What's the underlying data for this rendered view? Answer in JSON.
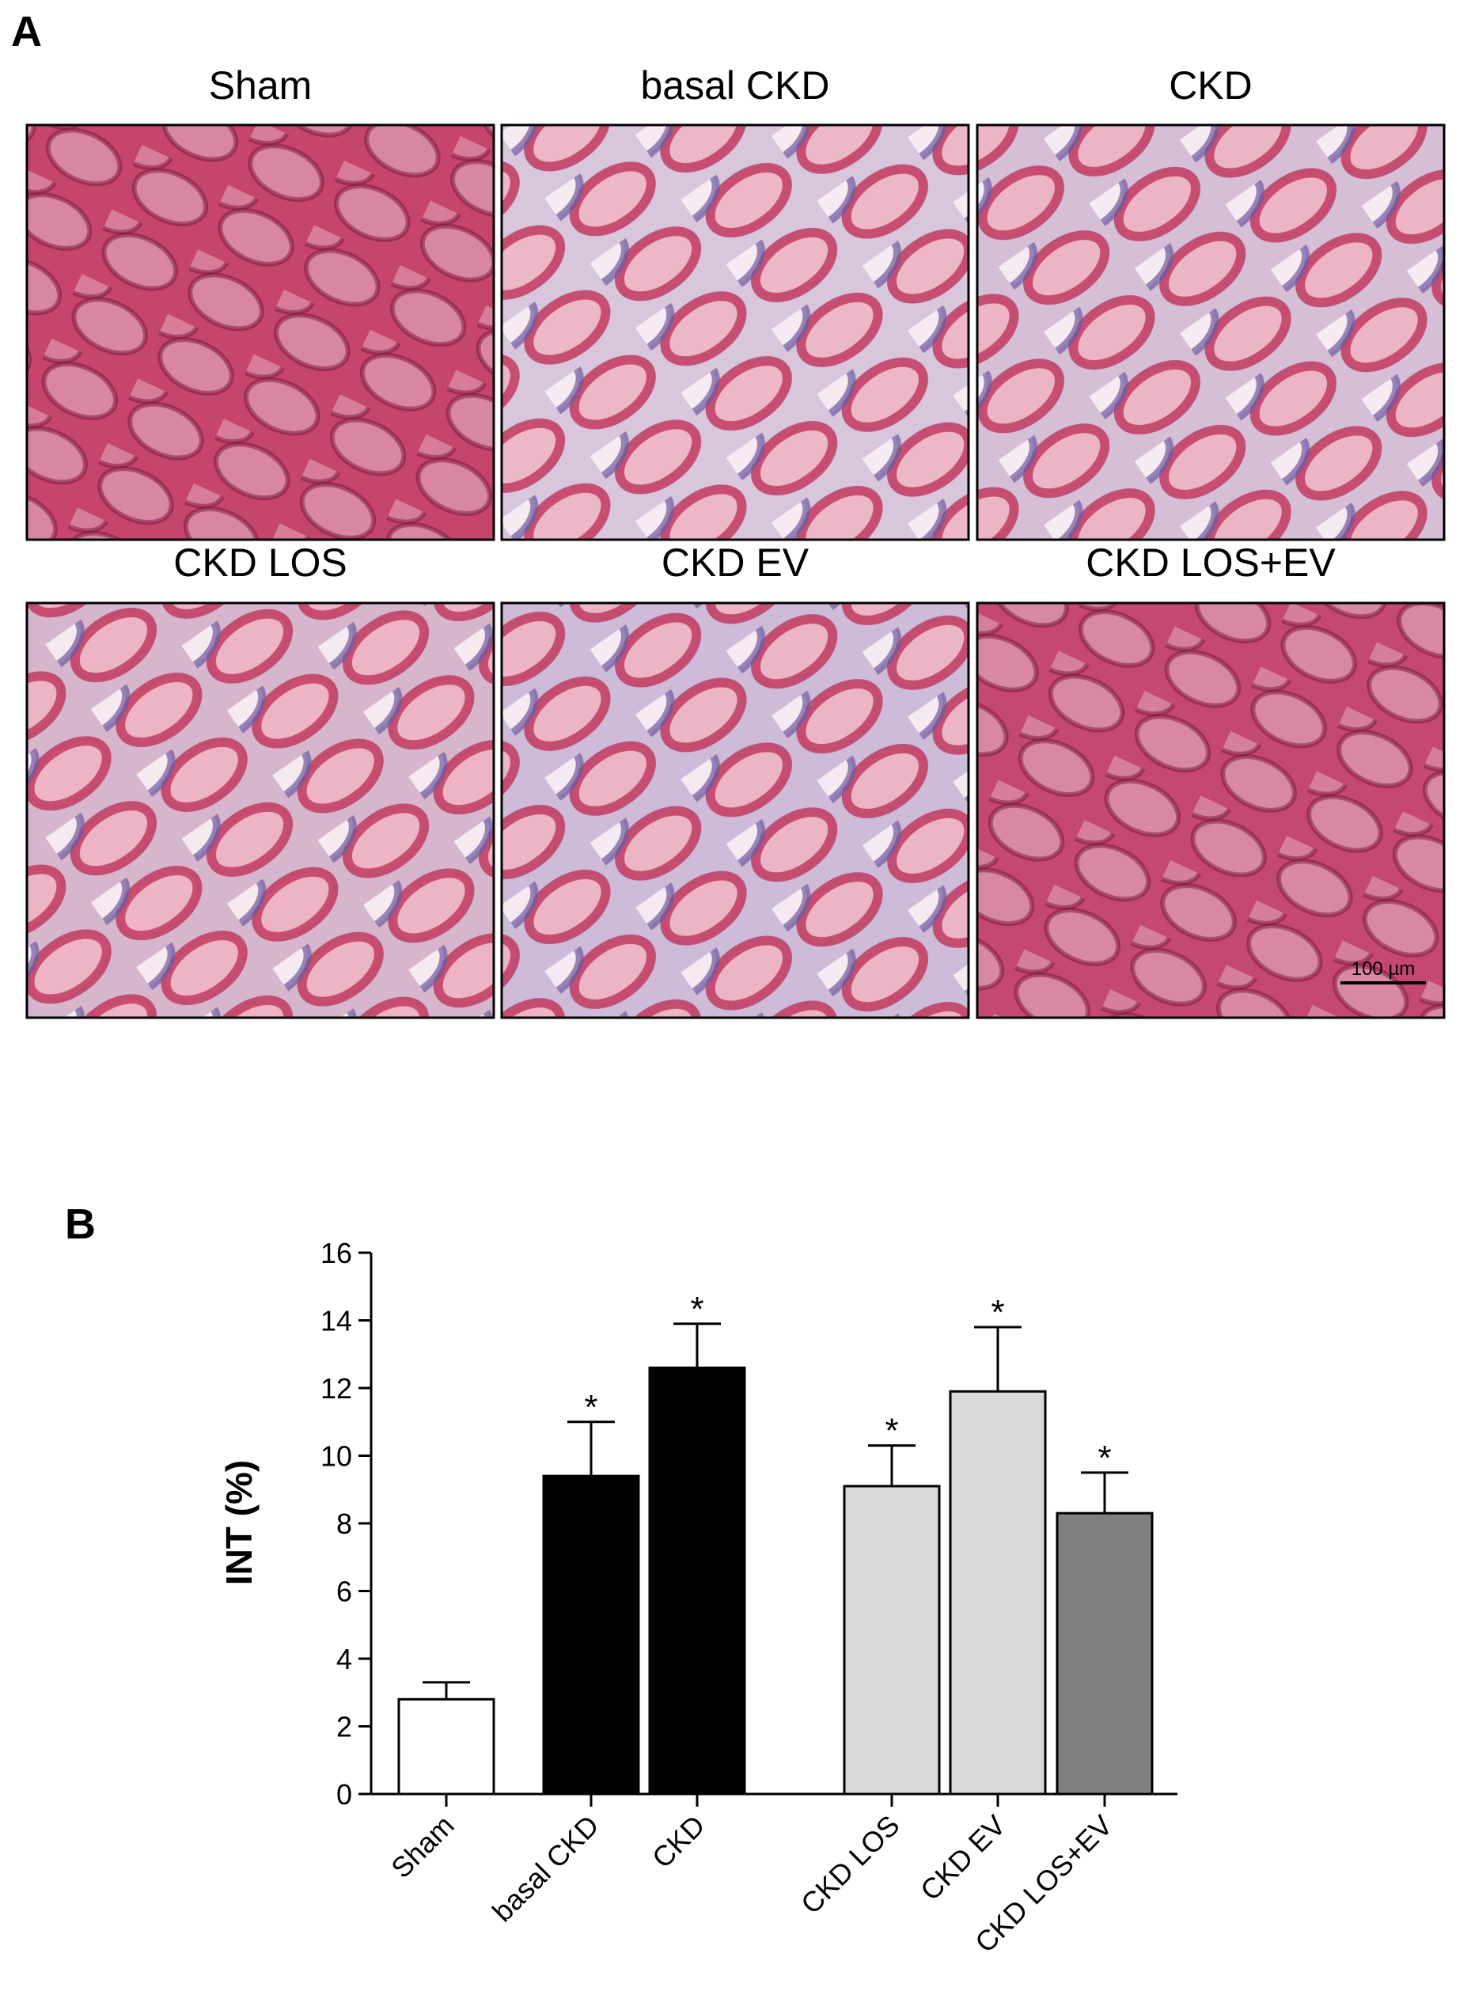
{
  "panel_a": {
    "label": "A",
    "images": [
      {
        "title": "Sham"
      },
      {
        "title": "basal CKD"
      },
      {
        "title": "CKD"
      },
      {
        "title": "CKD LOS"
      },
      {
        "title": "CKD EV"
      },
      {
        "title": "CKD LOS+EV"
      }
    ],
    "scale_bar": "100 µm"
  },
  "panel_b": {
    "label": "B"
  },
  "chart_data": {
    "type": "bar",
    "ylabel": "INT (%)",
    "categories": [
      "Sham",
      "basal CKD",
      "CKD",
      "CKD LOS",
      "CKD EV",
      "CKD LOS+EV"
    ],
    "values": [
      2.8,
      9.4,
      12.6,
      9.1,
      11.9,
      8.3
    ],
    "errors": [
      0.5,
      1.6,
      1.3,
      1.2,
      1.9,
      1.2
    ],
    "significance": [
      null,
      "*",
      "*",
      "*",
      "*",
      "*"
    ],
    "colors": [
      "#ffffff",
      "#000000",
      "#000000",
      "#d9d9d9",
      "#d9d9d9",
      "#808080"
    ],
    "ylim": [
      0,
      16
    ],
    "yticks": [
      0,
      2,
      4,
      6,
      8,
      10,
      12,
      14,
      16
    ]
  }
}
